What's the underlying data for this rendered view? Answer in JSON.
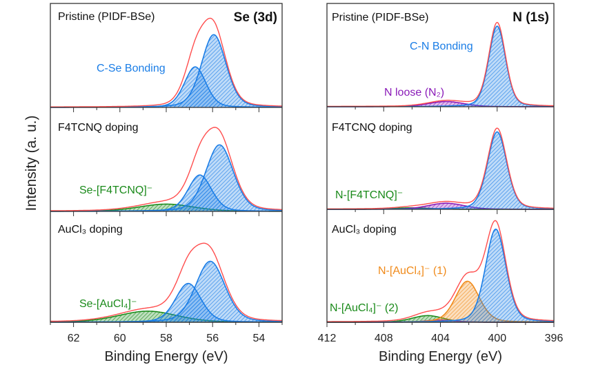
{
  "y_axis_title": "Intensity (a. u.)",
  "colors": {
    "envelope": "#ff4d4d",
    "blue": "#1a7de6",
    "green": "#1a8a1a",
    "purple": "#8a1ab8",
    "orange": "#f08a1a",
    "axis": "#333333"
  },
  "chart_data": [
    {
      "type": "line",
      "title": "Se (3d)",
      "xlabel": "Binding Energy (eV)",
      "ylabel": "Intensity (a. u.)",
      "xlim": [
        63,
        53
      ],
      "x_reversed": true,
      "xticks": [
        62,
        60,
        58,
        56,
        54
      ],
      "ylim": [
        0,
        100
      ],
      "grid": false,
      "panels": [
        {
          "label": "Pristine (PIDF-BSe)",
          "annotations": [
            {
              "text": "C-Se Bonding",
              "color": "blue"
            }
          ],
          "components": [
            {
              "color": "blue",
              "center": 56.75,
              "height": 39,
              "fwhm": 1.1
            },
            {
              "color": "blue",
              "center": 55.95,
              "height": 70,
              "fwhm": 1.25
            }
          ]
        },
        {
          "label": "F4TCNQ doping",
          "annotations": [
            {
              "text": "Se-[F4TCNQ]⁻",
              "color": "green"
            }
          ],
          "components": [
            {
              "color": "green",
              "center": 58.0,
              "height": 7,
              "fwhm": 2.8
            },
            {
              "color": "blue",
              "center": 56.55,
              "height": 35,
              "fwhm": 1.2
            },
            {
              "color": "blue",
              "center": 55.7,
              "height": 64,
              "fwhm": 1.4
            }
          ]
        },
        {
          "label": "AuCl₃ doping",
          "annotations": [
            {
              "text": "Se-[AuCl₄]⁻",
              "color": "green"
            }
          ],
          "components": [
            {
              "color": "green",
              "center": 58.8,
              "height": 10,
              "fwhm": 3.0
            },
            {
              "color": "blue",
              "center": 57.05,
              "height": 35,
              "fwhm": 1.3
            },
            {
              "color": "blue",
              "center": 56.1,
              "height": 55,
              "fwhm": 1.5
            }
          ]
        }
      ]
    },
    {
      "type": "line",
      "title": "N (1s)",
      "xlabel": "Binding Energy (eV)",
      "xlim": [
        412,
        396
      ],
      "x_reversed": true,
      "xticks": [
        412,
        408,
        404,
        400,
        396
      ],
      "ylim": [
        0,
        100
      ],
      "grid": false,
      "panels": [
        {
          "label": "Pristine (PIDF-BSe)",
          "annotations": [
            {
              "text": "C-N Bonding",
              "color": "blue"
            },
            {
              "text": "N loose (N₂)",
              "color": "purple"
            }
          ],
          "components": [
            {
              "color": "purple",
              "center": 403.6,
              "height": 5,
              "fwhm": 3.0
            },
            {
              "color": "blue",
              "center": 400.0,
              "height": 78,
              "fwhm": 1.4
            }
          ]
        },
        {
          "label": "F4TCNQ doping",
          "annotations": [
            {
              "text": "N-[F4TCNQ]⁻",
              "color": "green"
            }
          ],
          "components": [
            {
              "color": "green",
              "center": 406.0,
              "height": 1.5,
              "fwhm": 3.0
            },
            {
              "color": "purple",
              "center": 403.6,
              "height": 6,
              "fwhm": 3.0
            },
            {
              "color": "blue",
              "center": 400.0,
              "height": 76,
              "fwhm": 1.6
            }
          ]
        },
        {
          "label": "AuCl₃ doping",
          "annotations": [
            {
              "text": "N-[AuCl₄]⁻ (1)",
              "color": "orange"
            },
            {
              "text": "N-[AuCl₄]⁻ (2)",
              "color": "green"
            }
          ],
          "components": [
            {
              "color": "green",
              "center": 404.9,
              "height": 6,
              "fwhm": 2.6
            },
            {
              "color": "purple",
              "center": 404.0,
              "height": 2,
              "fwhm": 2.5
            },
            {
              "color": "orange",
              "center": 402.1,
              "height": 37,
              "fwhm": 2.0
            },
            {
              "color": "blue",
              "center": 400.1,
              "height": 84,
              "fwhm": 1.7
            }
          ]
        }
      ]
    }
  ]
}
